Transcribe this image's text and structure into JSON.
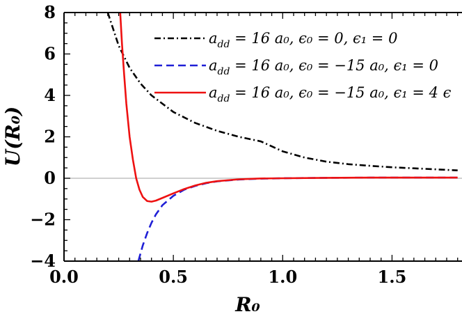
{
  "chart_data": {
    "type": "line",
    "xlabel": "R₀",
    "ylabel": "U(R₀)",
    "xlim": [
      0,
      1.82
    ],
    "ylim": [
      -4,
      8
    ],
    "x_ticks": [
      "0.0",
      "0.5",
      "1.0",
      "1.5"
    ],
    "y_ticks": [
      "−4",
      "−2",
      "0",
      "2",
      "4",
      "6",
      "8"
    ],
    "grid": false,
    "zero_line": true,
    "legend_position": "top-right",
    "series": [
      {
        "name": "a_dd = 16 a₀, ϵ₀ = 0, ϵ₁ = 0",
        "label": {
          "prefix": "a",
          "sub": "dd",
          "rest": " = 16 a₀, ϵ₀ = 0, ϵ₁ = 0"
        },
        "color": "#000000",
        "style": "dash-dot",
        "points": [
          [
            0.2,
            8.0
          ],
          [
            0.25,
            6.4
          ],
          [
            0.3,
            5.33
          ],
          [
            0.35,
            4.57
          ],
          [
            0.4,
            4.0
          ],
          [
            0.5,
            3.2
          ],
          [
            0.6,
            2.67
          ],
          [
            0.7,
            2.29
          ],
          [
            0.8,
            2.0
          ],
          [
            0.9,
            1.78
          ],
          [
            1.0,
            1.3
          ],
          [
            1.1,
            1.0
          ],
          [
            1.2,
            0.8
          ],
          [
            1.3,
            0.68
          ],
          [
            1.4,
            0.6
          ],
          [
            1.5,
            0.53
          ],
          [
            1.6,
            0.48
          ],
          [
            1.7,
            0.43
          ],
          [
            1.8,
            0.38
          ]
        ]
      },
      {
        "name": "a_dd = 16 a₀, ϵ₀ = −15 a₀, ϵ₁ = 0",
        "label": {
          "prefix": "a",
          "sub": "dd",
          "rest": " = 16 a₀, ϵ₀ = −15 a₀, ϵ₁ = 0"
        },
        "color": "#1f1fd6",
        "style": "dashed",
        "points": [
          [
            0.34,
            -4.0
          ],
          [
            0.36,
            -3.25
          ],
          [
            0.38,
            -2.65
          ],
          [
            0.4,
            -2.15
          ],
          [
            0.42,
            -1.75
          ],
          [
            0.45,
            -1.3
          ],
          [
            0.5,
            -0.85
          ],
          [
            0.55,
            -0.55
          ],
          [
            0.6,
            -0.37
          ],
          [
            0.65,
            -0.24
          ],
          [
            0.7,
            -0.15
          ],
          [
            0.8,
            -0.06
          ],
          [
            0.9,
            -0.02
          ],
          [
            1.0,
            0.0
          ],
          [
            1.2,
            0.02
          ],
          [
            1.4,
            0.03
          ],
          [
            1.6,
            0.03
          ],
          [
            1.8,
            0.03
          ]
        ]
      },
      {
        "name": "a_dd = 16 a₀, ϵ₀ = −15 a₀, ϵ₁ = 4 ϵ",
        "label": {
          "prefix": "a",
          "sub": "dd",
          "rest": " = 16 a₀, ϵ₀ = −15 a₀, ϵ₁ = 4 ϵ"
        },
        "color": "#ee1111",
        "style": "solid",
        "points": [
          [
            0.257,
            8.0
          ],
          [
            0.265,
            6.5
          ],
          [
            0.275,
            5.0
          ],
          [
            0.285,
            3.6
          ],
          [
            0.3,
            2.0
          ],
          [
            0.315,
            0.9
          ],
          [
            0.33,
            0.0
          ],
          [
            0.345,
            -0.55
          ],
          [
            0.36,
            -0.9
          ],
          [
            0.38,
            -1.1
          ],
          [
            0.4,
            -1.13
          ],
          [
            0.42,
            -1.08
          ],
          [
            0.45,
            -0.95
          ],
          [
            0.5,
            -0.73
          ],
          [
            0.55,
            -0.52
          ],
          [
            0.6,
            -0.35
          ],
          [
            0.65,
            -0.22
          ],
          [
            0.7,
            -0.14
          ],
          [
            0.8,
            -0.05
          ],
          [
            0.9,
            -0.01
          ],
          [
            1.0,
            0.0
          ],
          [
            1.2,
            0.02
          ],
          [
            1.4,
            0.03
          ],
          [
            1.6,
            0.03
          ],
          [
            1.8,
            0.03
          ]
        ]
      }
    ]
  }
}
